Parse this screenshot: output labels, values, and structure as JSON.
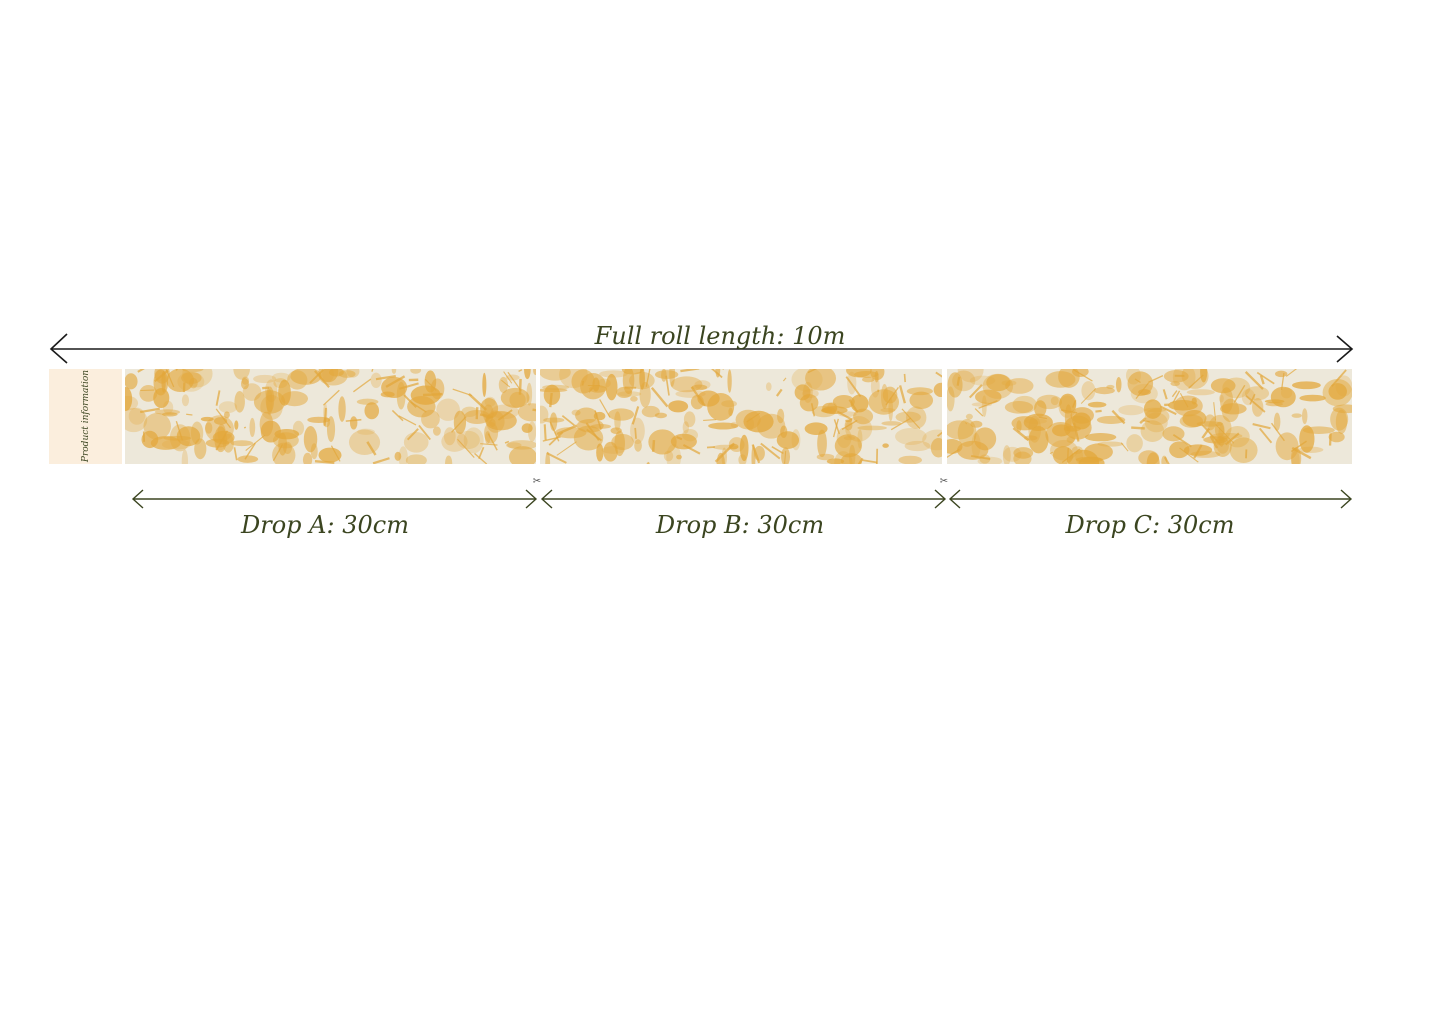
{
  "full_roll": {
    "label": "Full roll length: 10m"
  },
  "product_panel": {
    "label": "Product information"
  },
  "drops": [
    {
      "label": "Drop A: 30cm"
    },
    {
      "label": "Drop B: 30cm"
    },
    {
      "label": "Drop C: 30cm"
    }
  ],
  "icons": {
    "cut_marker": "scissors-icon"
  },
  "colors": {
    "text": "#3b4520",
    "arrow_top": "#1a1a1a",
    "panel_background": "#ede8da",
    "pattern": "#e3a73a",
    "product_panel": "#fbeedd"
  }
}
